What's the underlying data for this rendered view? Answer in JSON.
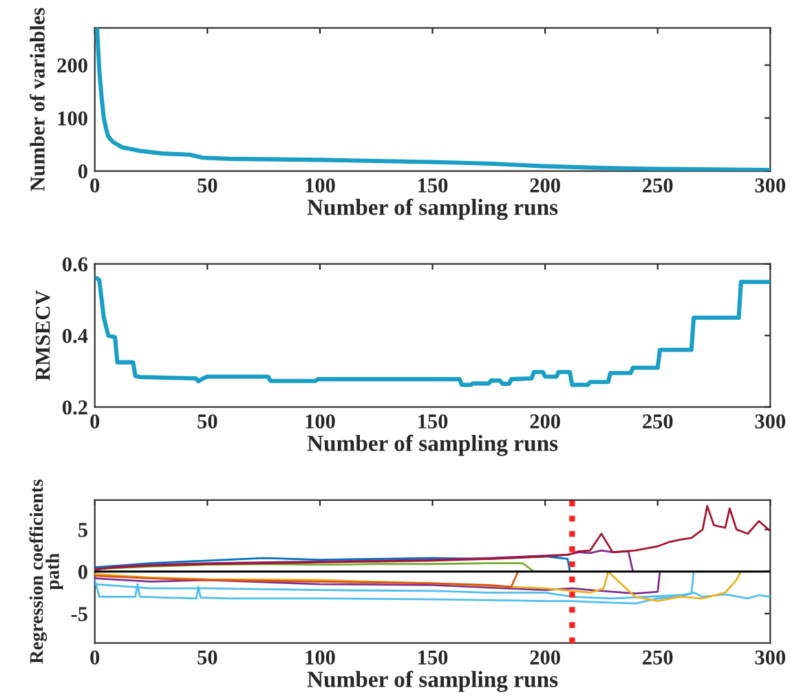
{
  "chart_data": [
    {
      "type": "line",
      "xlabel": "Number of sampling runs",
      "ylabel": "Number of variables",
      "xlim": [
        0,
        300
      ],
      "ylim": [
        0,
        270
      ],
      "xticks": [
        0,
        50,
        100,
        150,
        200,
        250,
        300
      ],
      "yticks": [
        0,
        100,
        200
      ],
      "grid": false,
      "legend": false,
      "marker": "none",
      "line_style": "solid",
      "series": [
        {
          "color": "#1a9ec4",
          "x": [
            1,
            2,
            3,
            4,
            5,
            6,
            8,
            12,
            20,
            30,
            42,
            48,
            60,
            100,
            150,
            175,
            200,
            225,
            250,
            275,
            300
          ],
          "values": [
            270,
            190,
            140,
            100,
            80,
            65,
            55,
            45,
            38,
            33,
            31,
            25,
            23,
            21,
            17,
            14,
            9,
            6,
            4,
            3,
            2
          ]
        }
      ]
    },
    {
      "type": "line",
      "xlabel": "Number of sampling runs",
      "ylabel": "RMSECV",
      "xlim": [
        0,
        300
      ],
      "ylim": [
        0.2,
        0.6
      ],
      "xticks": [
        0,
        50,
        100,
        150,
        200,
        250,
        300
      ],
      "yticks": [
        0.2,
        0.4,
        0.6
      ],
      "grid": false,
      "legend": false,
      "marker": "none",
      "line_style": "solid",
      "series": [
        {
          "color": "#1a9ec4",
          "x": [
            1,
            2,
            4,
            6,
            9,
            10,
            17,
            18,
            20,
            45,
            46,
            48,
            50,
            77,
            78,
            98,
            99,
            162,
            163,
            167,
            168,
            175,
            176,
            180,
            181,
            184,
            185,
            194,
            195,
            199,
            200,
            205,
            206,
            211,
            212,
            219,
            220,
            228,
            229,
            238,
            239,
            250,
            251,
            265,
            266,
            286,
            287,
            300
          ],
          "values": [
            0.56,
            0.555,
            0.45,
            0.4,
            0.395,
            0.325,
            0.325,
            0.287,
            0.284,
            0.28,
            0.272,
            0.28,
            0.285,
            0.285,
            0.273,
            0.273,
            0.278,
            0.278,
            0.262,
            0.262,
            0.266,
            0.266,
            0.274,
            0.274,
            0.265,
            0.265,
            0.278,
            0.28,
            0.298,
            0.298,
            0.285,
            0.285,
            0.298,
            0.298,
            0.262,
            0.262,
            0.27,
            0.27,
            0.295,
            0.295,
            0.31,
            0.31,
            0.36,
            0.36,
            0.45,
            0.45,
            0.55,
            0.55
          ]
        }
      ]
    },
    {
      "type": "line",
      "xlabel": "Number of sampling runs",
      "ylabel": "Regression coefficients\npath",
      "xlim": [
        0,
        300
      ],
      "ylim": [
        -8.5,
        8.5
      ],
      "xticks": [
        0,
        50,
        100,
        150,
        200,
        250,
        300
      ],
      "yticks": [
        -5,
        0,
        5
      ],
      "grid": false,
      "legend": false,
      "marker": "none",
      "line_style": "solid",
      "ref_lines": [
        {
          "axis": "y",
          "value": 0,
          "color": "#000000",
          "line_style": "solid"
        },
        {
          "axis": "x",
          "value": 212,
          "color": "#ff2020",
          "line_style": "dotted"
        }
      ],
      "series": [
        {
          "color": "#a2142f",
          "x": [
            0,
            10,
            25,
            50,
            75,
            100,
            125,
            150,
            175,
            200,
            210,
            215,
            220,
            225,
            230,
            240,
            250,
            255,
            260,
            265,
            270,
            272,
            275,
            280,
            282,
            285,
            290,
            295,
            300
          ],
          "values": [
            0.3,
            0.5,
            0.7,
            0.9,
            1.0,
            1.1,
            1.2,
            1.3,
            1.5,
            1.8,
            2.0,
            2.4,
            2.5,
            4.5,
            2.3,
            2.5,
            3.0,
            3.5,
            3.8,
            4.0,
            5.0,
            7.8,
            5.5,
            5.2,
            7.5,
            5.0,
            4.5,
            6.0,
            4.8
          ]
        },
        {
          "color": "#7e2f8e",
          "x": [
            0,
            10,
            25,
            50,
            75,
            100,
            125,
            150,
            175,
            200,
            210,
            215,
            220,
            225,
            230,
            237,
            239
          ],
          "values": [
            0.2,
            0.6,
            0.8,
            1.0,
            1.1,
            1.2,
            1.3,
            1.4,
            1.6,
            1.9,
            2.0,
            2.3,
            2.2,
            2.5,
            2.3,
            2.4,
            0
          ]
        },
        {
          "color": "#0072bd",
          "x": [
            0,
            25,
            50,
            75,
            100,
            125,
            150,
            175,
            200,
            210,
            211
          ],
          "values": [
            0.5,
            1.0,
            1.3,
            1.6,
            1.4,
            1.5,
            1.6,
            1.5,
            1.8,
            1.5,
            0
          ]
        },
        {
          "color": "#77ac30",
          "x": [
            0,
            25,
            50,
            75,
            100,
            125,
            150,
            175,
            190,
            195
          ],
          "values": [
            0.3,
            0.6,
            0.8,
            0.9,
            0.8,
            0.9,
            0.9,
            1.0,
            1.0,
            0
          ]
        },
        {
          "color": "#d95319",
          "x": [
            0,
            25,
            50,
            75,
            100,
            125,
            150,
            175,
            185,
            188
          ],
          "values": [
            -0.5,
            -0.8,
            -1.0,
            -1.1,
            -1.2,
            -1.3,
            -1.4,
            -1.6,
            -1.8,
            0
          ]
        },
        {
          "color": "#edb120",
          "x": [
            0,
            25,
            50,
            100,
            150,
            200,
            212,
            220,
            226,
            228,
            240,
            250,
            260,
            270,
            280,
            285,
            287
          ],
          "values": [
            -0.3,
            -0.7,
            -0.9,
            -1.0,
            -1.4,
            -2.0,
            -2.3,
            -2.5,
            -2.0,
            0,
            -3.0,
            -3.5,
            -3.0,
            -3.2,
            -2.5,
            -1.0,
            0
          ]
        },
        {
          "color": "#7e2f8e",
          "x": [
            0,
            25,
            50,
            100,
            150,
            200,
            212,
            220,
            230,
            240,
            250,
            251
          ],
          "values": [
            -0.8,
            -1.2,
            -1.0,
            -1.5,
            -1.6,
            -2.2,
            -2.0,
            -2.2,
            -2.4,
            -2.6,
            -2.4,
            0
          ]
        },
        {
          "color": "#4dbeee",
          "x": [
            0,
            2,
            18,
            19,
            20,
            45,
            46,
            47,
            60,
            100,
            150,
            200,
            212,
            220,
            240,
            250,
            260,
            266,
            270,
            280,
            290,
            295,
            300
          ],
          "values": [
            -1.0,
            -3.0,
            -3.0,
            -1.5,
            -3.0,
            -3.2,
            -1.8,
            -3.1,
            -3.2,
            -3.2,
            -3.3,
            -3.5,
            -3.5,
            -3.6,
            -3.8,
            -3.2,
            -3.0,
            -2.5,
            -3.0,
            -2.7,
            -3.2,
            -2.8,
            -3.0
          ]
        },
        {
          "color": "#4dbeee",
          "x": [
            0,
            25,
            50,
            100,
            150,
            175,
            200,
            212,
            230,
            260,
            265,
            266
          ],
          "values": [
            -1.5,
            -2.0,
            -2.0,
            -2.2,
            -2.3,
            -2.5,
            -2.5,
            -3.0,
            -3.2,
            -2.8,
            -2.6,
            0
          ]
        }
      ]
    }
  ]
}
